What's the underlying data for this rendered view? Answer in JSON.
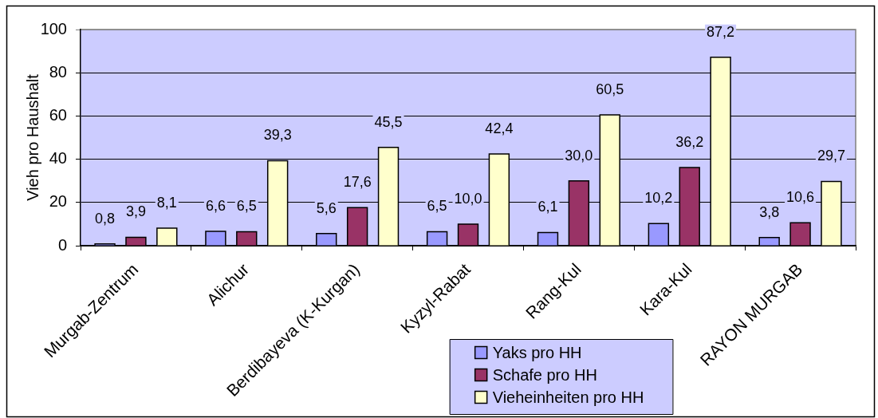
{
  "chart_data": {
    "type": "bar",
    "ylabel": "Vieh pro Haushalt",
    "categories": [
      "Murgab-Zentrum",
      "Alichur",
      "Berdibayeva (K-Kurgan)",
      "Kyzyl-Rabat",
      "Rang-Kul",
      "Kara-Kul",
      "RAYON MURGAB"
    ],
    "series": [
      {
        "name": "Yaks pro HH",
        "color": "#9999ff",
        "values": [
          0.8,
          6.6,
          5.6,
          6.5,
          6.1,
          10.2,
          3.8
        ],
        "value_labels": [
          "0,8",
          "6,6",
          "5,6",
          "6,5",
          "6,1",
          "10,2",
          "3,8"
        ]
      },
      {
        "name": "Schafe pro HH",
        "color": "#993366",
        "values": [
          3.9,
          6.5,
          17.6,
          10.0,
          30.0,
          36.2,
          10.6
        ],
        "value_labels": [
          "3,9",
          "6,5",
          "17,6",
          "10,0",
          "30,0",
          "36,2",
          "10,6"
        ]
      },
      {
        "name": "Vieheinheiten pro HH",
        "color": "#ffffcc",
        "values": [
          8.1,
          39.3,
          45.5,
          42.4,
          60.5,
          87.2,
          29.7
        ],
        "value_labels": [
          "8,1",
          "39,3",
          "45,5",
          "42,4",
          "60,5",
          "87,2",
          "29,7"
        ]
      }
    ],
    "ylim": [
      0,
      100
    ],
    "yticks": [
      0,
      20,
      40,
      60,
      80,
      100
    ],
    "grid": "y",
    "legend": "bottom"
  }
}
